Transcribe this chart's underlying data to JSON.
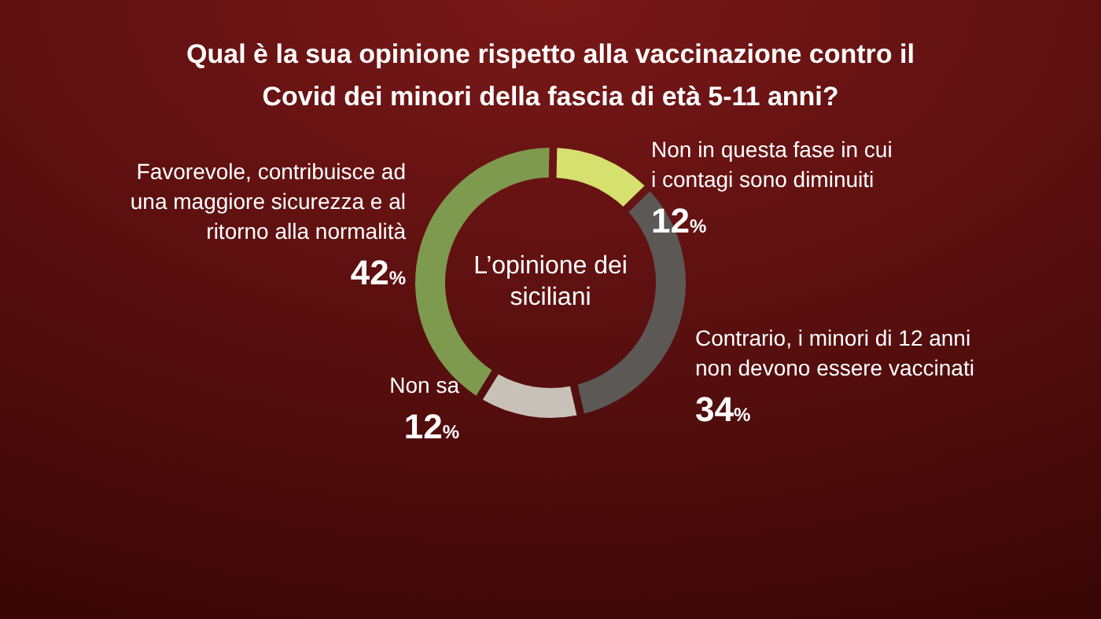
{
  "chart_data": {
    "type": "donut",
    "title": "Qual è la sua opinione rispetto alla vaccinazione contro il Covid dei minori della fascia di età 5-11 anni?",
    "categories": [
      "Non in questa fase in cui i contagi sono diminuiti",
      "Contrario, i minori di 12 anni non devono essere vaccinati",
      "Non sa",
      "Favorevole, contribuisce ad una maggiore sicurezza e al ritorno alla normalità"
    ],
    "values": [
      12,
      34,
      12,
      42
    ],
    "colors": [
      "#d6e06e",
      "#5b5855",
      "#c8c1b8",
      "#7e9a4f"
    ],
    "value_labels": [
      "12%",
      "34%",
      "12%",
      "42%"
    ],
    "annotations": [
      "L’opinione dei siciliani"
    ]
  }
}
